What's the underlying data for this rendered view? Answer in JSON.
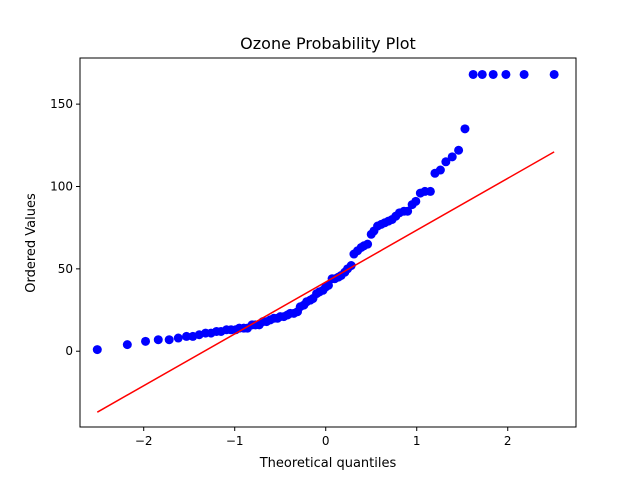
{
  "chart_data": {
    "type": "scatter",
    "title": "Ozone Probability Plot",
    "xlabel": "Theoretical quantiles",
    "ylabel": "Ordered Values",
    "xlim": [
      -2.7,
      2.75
    ],
    "ylim": [
      -46,
      178
    ],
    "x_ticks": [
      -2,
      -1,
      0,
      1,
      2
    ],
    "x_tick_labels": [
      "−2",
      "−1",
      "0",
      "1",
      "2"
    ],
    "y_ticks": [
      0,
      50,
      100,
      150
    ],
    "y_tick_labels": [
      "0",
      "50",
      "100",
      "150"
    ],
    "grid": false,
    "legend": "none",
    "point_color": "#0000ff",
    "line_color": "#ff0000",
    "series": [
      {
        "kind": "points",
        "x": [
          -2.51,
          -2.18,
          -1.98,
          -1.84,
          -1.72,
          -1.62,
          -1.53,
          -1.46,
          -1.39,
          -1.32,
          -1.26,
          -1.2,
          -1.15,
          -1.09,
          -1.04,
          -0.99,
          -0.95,
          -0.9,
          -0.86,
          -0.81,
          -0.77,
          -0.73,
          -0.69,
          -0.65,
          -0.61,
          -0.57,
          -0.53,
          -0.5,
          -0.46,
          -0.42,
          -0.39,
          -0.35,
          -0.31,
          -0.28,
          -0.24,
          -0.21,
          -0.17,
          -0.14,
          -0.1,
          -0.07,
          -0.03,
          0.0,
          0.03,
          0.07,
          0.1,
          0.14,
          0.17,
          0.21,
          0.24,
          0.28,
          0.31,
          0.35,
          0.39,
          0.42,
          0.46,
          0.5,
          0.53,
          0.57,
          0.61,
          0.65,
          0.69,
          0.73,
          0.77,
          0.81,
          0.86,
          0.9,
          0.95,
          0.99,
          1.04,
          1.09,
          1.15,
          1.2,
          1.26,
          1.32,
          1.39,
          1.46,
          1.53,
          1.62,
          1.72,
          1.84,
          1.98,
          2.18,
          2.51
        ],
        "y": [
          1,
          4,
          6,
          7,
          7,
          8,
          9,
          9,
          10,
          11,
          11,
          12,
          12,
          13,
          13,
          13,
          14,
          14,
          14,
          16,
          16,
          16,
          18,
          18,
          19,
          20,
          20,
          21,
          21,
          22,
          23,
          23,
          24,
          27,
          28,
          30,
          31,
          32,
          35,
          36,
          37,
          39,
          40,
          44,
          44,
          45,
          46,
          48,
          50,
          52,
          59,
          61,
          63,
          64,
          65,
          71,
          73,
          76,
          77,
          78,
          79,
          80,
          82,
          84,
          85,
          85,
          89,
          91,
          96,
          97,
          97,
          108,
          110,
          115,
          118,
          122,
          135,
          168,
          168,
          168,
          168,
          168,
          168
        ],
        "note_unused": ""
      },
      {
        "kind": "line",
        "x": [
          -2.51,
          2.51
        ],
        "y": [
          -37,
          121
        ]
      }
    ]
  }
}
